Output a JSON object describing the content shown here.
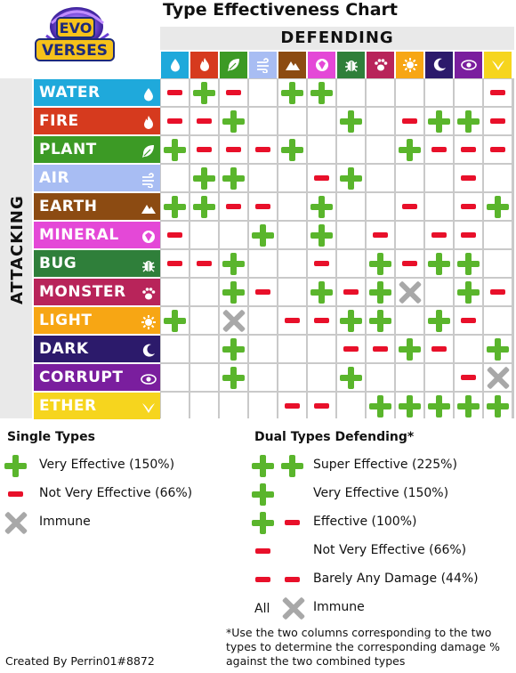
{
  "title": "Type Effectiveness Chart",
  "logo_text": [
    "EVO",
    "VERSES"
  ],
  "defending_label": "DEFENDING",
  "attacking_label": "ATTACKING",
  "types": [
    {
      "name": "WATER",
      "color": "#1fa9db",
      "icon": "water-drop-icon"
    },
    {
      "name": "FIRE",
      "color": "#d63a1e",
      "icon": "flame-icon"
    },
    {
      "name": "PLANT",
      "color": "#3c9a25",
      "icon": "leaf-icon"
    },
    {
      "name": "AIR",
      "color": "#a8bdf3",
      "icon": "wind-icon"
    },
    {
      "name": "EARTH",
      "color": "#8c4b12",
      "icon": "mountain-icon"
    },
    {
      "name": "MINERAL",
      "color": "#e448d7",
      "icon": "gem-icon"
    },
    {
      "name": "BUG",
      "color": "#2f7f3a",
      "icon": "beetle-icon"
    },
    {
      "name": "MONSTER",
      "color": "#b8245a",
      "icon": "claw-icon"
    },
    {
      "name": "LIGHT",
      "color": "#f7a614",
      "icon": "sun-icon"
    },
    {
      "name": "DARK",
      "color": "#2c1a6b",
      "icon": "moon-icon"
    },
    {
      "name": "CORRUPT",
      "color": "#7a1e9e",
      "icon": "eye-icon"
    },
    {
      "name": "ETHER",
      "color": "#f6d51e",
      "icon": "wings-icon"
    }
  ],
  "matrix": [
    [
      "-",
      "+",
      "-",
      "",
      "+",
      "+",
      "",
      "",
      "",
      "",
      "",
      "-"
    ],
    [
      "-",
      "-",
      "+",
      "",
      "",
      "",
      "+",
      "",
      "-",
      "+",
      "+",
      "-"
    ],
    [
      "+",
      "-",
      "-",
      "-",
      "+",
      "",
      "",
      "",
      "+",
      "-",
      "-",
      "-"
    ],
    [
      "",
      "+",
      "+",
      "",
      "",
      "-",
      "+",
      "",
      "",
      "",
      "-",
      ""
    ],
    [
      "+",
      "+",
      "-",
      "-",
      "",
      "+",
      "",
      "",
      "-",
      "",
      "-",
      "+"
    ],
    [
      "-",
      "",
      "",
      "+",
      "",
      "+",
      "",
      "-",
      "",
      "-",
      "-",
      ""
    ],
    [
      "-",
      "-",
      "+",
      "",
      "",
      "-",
      "",
      "+",
      "-",
      "+",
      "+",
      ""
    ],
    [
      "",
      "",
      "+",
      "-",
      "",
      "+",
      "-",
      "+",
      "x",
      "",
      "+",
      "-"
    ],
    [
      "+",
      "",
      "x",
      "",
      "-",
      "-",
      "+",
      "+",
      "",
      "+",
      "-",
      ""
    ],
    [
      "",
      "",
      "+",
      "",
      "",
      "",
      "-",
      "-",
      "+",
      "-",
      "",
      "+"
    ],
    [
      "",
      "",
      "+",
      "",
      "",
      "",
      "+",
      "",
      "",
      "",
      "-",
      "x"
    ],
    [
      "",
      "",
      "",
      "",
      "-",
      "-",
      "",
      "+",
      "+",
      "+",
      "+",
      "+"
    ]
  ],
  "legend_single": {
    "title": "Single Types",
    "items": [
      {
        "symbol": "plus",
        "label": "Very Effective (150%)"
      },
      {
        "symbol": "minus",
        "label": "Not Very Effective (66%)"
      },
      {
        "symbol": "cross",
        "label": "Immune"
      }
    ]
  },
  "legend_dual": {
    "title": "Dual Types Defending*",
    "items": [
      {
        "symbols": [
          "plus",
          "plus"
        ],
        "label": "Super Effective (225%)"
      },
      {
        "symbols": [
          "plus"
        ],
        "label": "Very Effective (150%)"
      },
      {
        "symbols": [
          "plus",
          "minus"
        ],
        "label": "Effective (100%)"
      },
      {
        "symbols": [
          "minus"
        ],
        "label": "Not Very Effective (66%)"
      },
      {
        "symbols": [
          "minus",
          "minus"
        ],
        "label": "Barely Any Damage (44%)"
      },
      {
        "symbols": [
          "cross"
        ],
        "prefix": "All",
        "label": "Immune"
      }
    ]
  },
  "note": "*Use the two columns corresponding to the two types to determine the corresponding damage % against the two combined types",
  "credit": "Created By Perrin01#8872"
}
